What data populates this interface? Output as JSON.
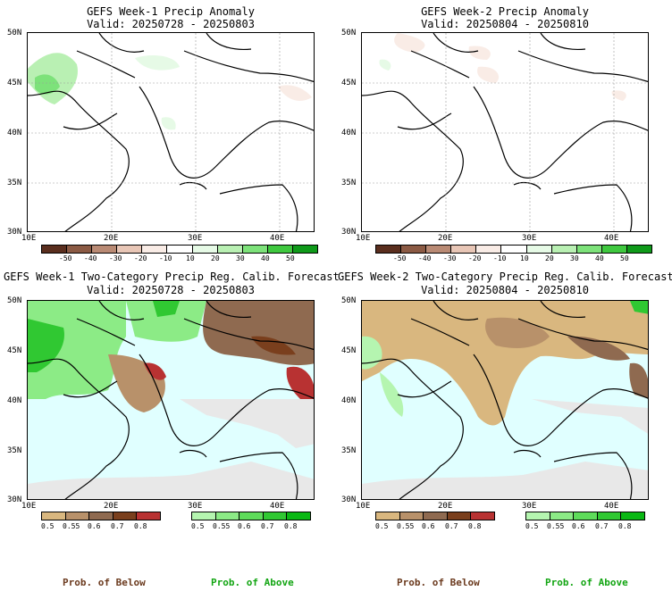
{
  "panels": [
    {
      "id": "w1-anom",
      "title": "GEFS Week-1 Precip Anomaly",
      "valid": "Valid: 20250728 - 20250803",
      "lat_labels": [
        "50N",
        "45N",
        "40N",
        "35N",
        "30N"
      ],
      "lon_labels": [
        "10E",
        "20E",
        "30E",
        "40E"
      ],
      "colorbar_labels": [
        "-50",
        "-40",
        "-30",
        "-20",
        "-10",
        "10",
        "20",
        "30",
        "40",
        "50"
      ]
    },
    {
      "id": "w2-anom",
      "title": "GEFS Week-2 Precip Anomaly",
      "valid": "Valid: 20250804 - 20250810",
      "lat_labels": [
        "50N",
        "45N",
        "40N",
        "35N",
        "30N"
      ],
      "lon_labels": [
        "10E",
        "20E",
        "30E",
        "40E"
      ],
      "colorbar_labels": [
        "-50",
        "-40",
        "-30",
        "-20",
        "-10",
        "10",
        "20",
        "30",
        "40",
        "50"
      ]
    },
    {
      "id": "w1-prob",
      "title": "GEFS Week-1 Two-Category Precip Reg. Calib. Forecast",
      "valid": "Valid: 20250728 - 20250803",
      "lat_labels": [
        "50N",
        "45N",
        "40N",
        "35N",
        "30N"
      ],
      "lon_labels": [
        "10E",
        "20E",
        "30E",
        "40E"
      ],
      "below_labels": [
        "0.5",
        "0.55",
        "0.6",
        "0.7",
        "0.8"
      ],
      "above_labels": [
        "0.5",
        "0.55",
        "0.6",
        "0.7",
        "0.8"
      ]
    },
    {
      "id": "w2-prob",
      "title": "GEFS Week-2 Two-Category Precip Reg. Calib. Forecast",
      "valid": "Valid: 20250804 - 20250810",
      "lat_labels": [
        "50N",
        "45N",
        "40N",
        "35N",
        "30N"
      ],
      "lon_labels": [
        "10E",
        "20E",
        "30E",
        "40E"
      ],
      "below_labels": [
        "0.5",
        "0.55",
        "0.6",
        "0.7",
        "0.8"
      ],
      "above_labels": [
        "0.5",
        "0.55",
        "0.6",
        "0.7",
        "0.8"
      ]
    }
  ],
  "legend": {
    "prob_below": "Prob. of Below",
    "prob_above": "Prob. of Above"
  },
  "colors": {
    "anomaly_scale": [
      "#5a2e1e",
      "#8b5a44",
      "#b98a74",
      "#e8c6b6",
      "#f9ece6",
      "#ffffff",
      "#e6fae6",
      "#b9f0b3",
      "#7de27a",
      "#3fc83f",
      "#0f9a1a"
    ],
    "below_scale": [
      "#d9b77f",
      "#b8916a",
      "#8f6a50",
      "#7a3f1d",
      "#b83232"
    ],
    "above_scale": [
      "#b5f5b0",
      "#8ceb86",
      "#5edc5a",
      "#30c832",
      "#0ab814"
    ],
    "sea": "#e0ffff",
    "dry_gray": "#e8e8e8",
    "below_label": "#6b3a1e",
    "above_label": "#12a512"
  }
}
